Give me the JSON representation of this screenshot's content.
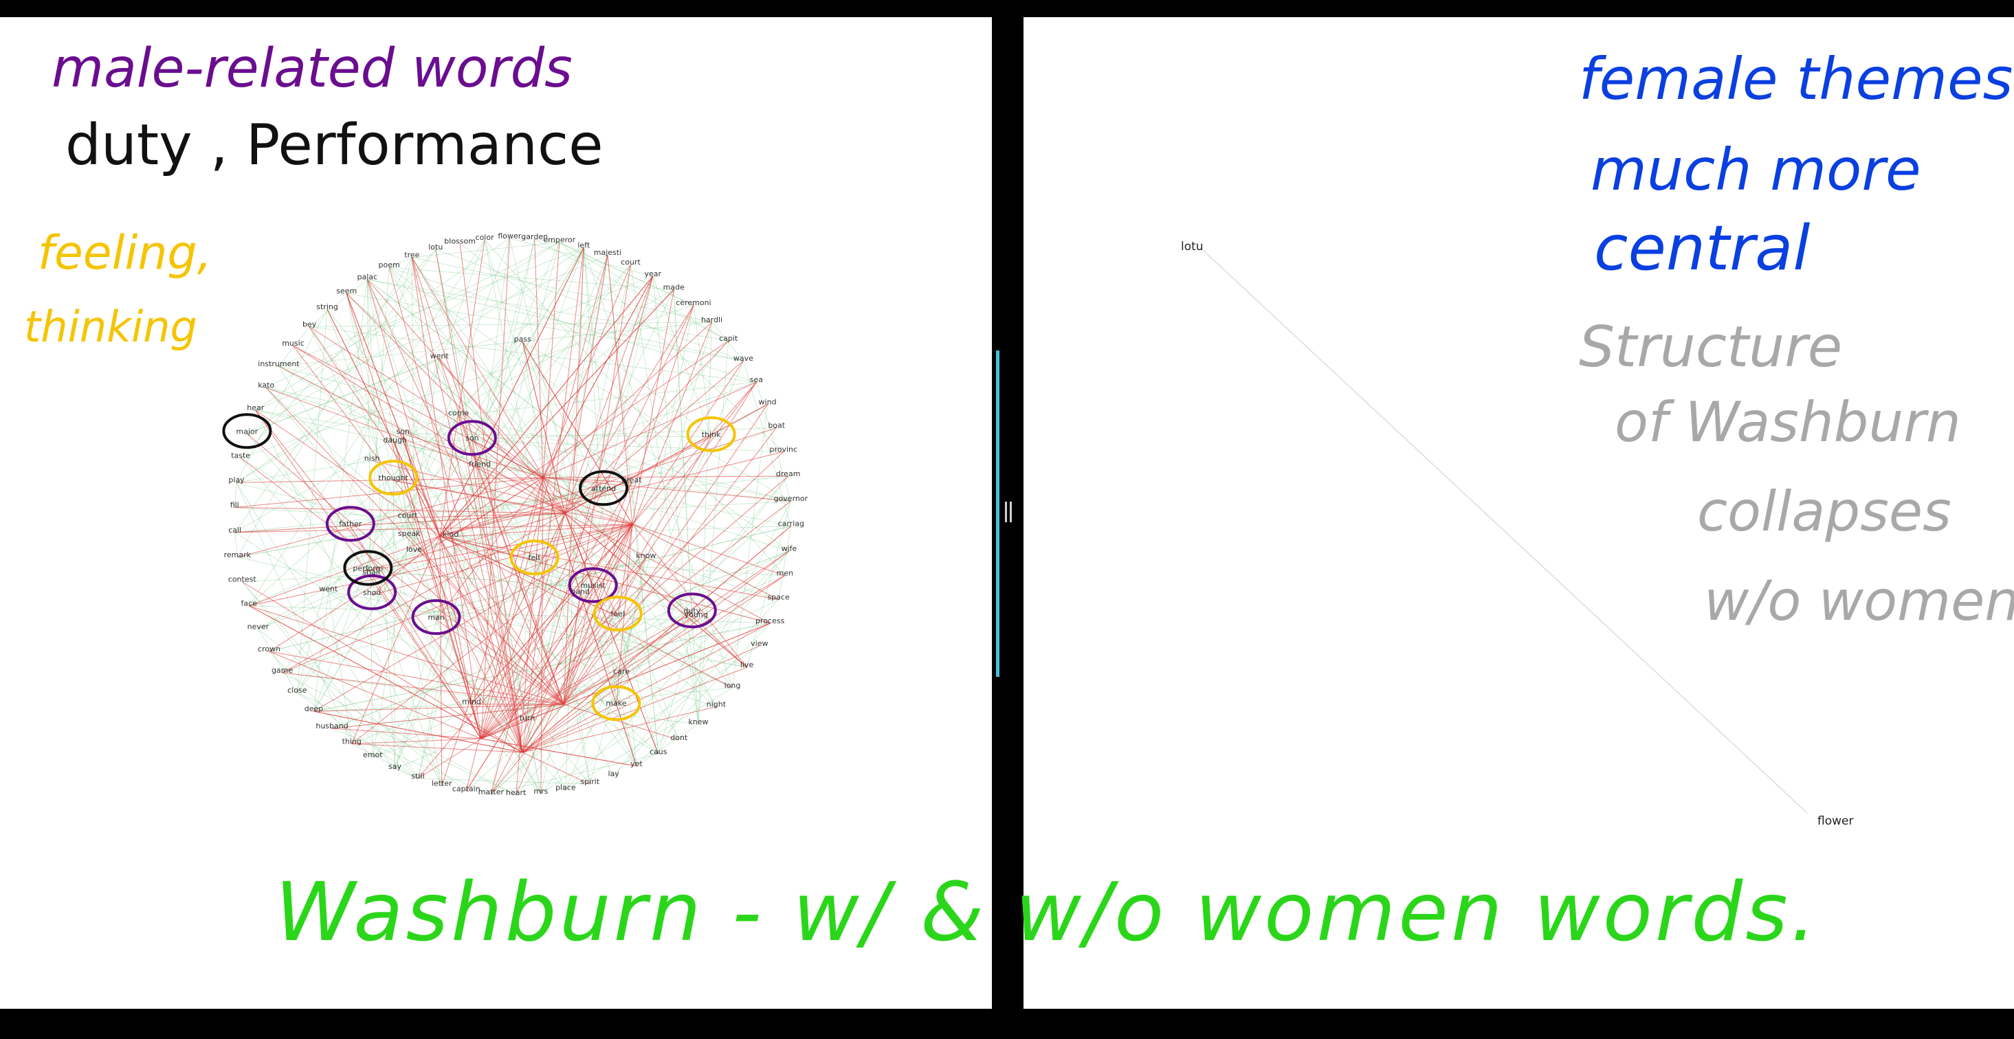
{
  "annotations": {
    "male_words": "male-related words",
    "duty": "duty , Performance",
    "feeling": "feeling,",
    "thinking": "thinking",
    "female_themes": "female themes",
    "much_more": "much more",
    "central": "central",
    "structure": "Structure",
    "of_washburn": "of Washburn",
    "collapses": "collapses",
    "without_women": "w/o women",
    "footer": "Washburn - w/ & w/o women words."
  },
  "colors": {
    "purple": "#6a0d8f",
    "black": "#111111",
    "yellow": "#f5c400",
    "blue": "#0a3fe0",
    "gray": "#a8a8a8",
    "green": "#2bd61a",
    "edge_red": "#e03a3a",
    "edge_green": "#7cc98a",
    "divider_accent": "#46c0d4"
  },
  "left_network": {
    "nodes": [
      "palac",
      "poem",
      "tree",
      "lotu",
      "blossom",
      "color",
      "flower",
      "garden",
      "emperor",
      "left",
      "majesti",
      "court",
      "year",
      "made",
      "ceremoni",
      "hardli",
      "capit",
      "wave",
      "sea",
      "wind",
      "boat",
      "provinc",
      "dream",
      "governor",
      "carriag",
      "wife",
      "men",
      "space",
      "process",
      "view",
      "live",
      "long",
      "night",
      "knew",
      "dont",
      "caus",
      "yet",
      "lay",
      "spirit",
      "place",
      "mrs",
      "heart",
      "matter",
      "captain",
      "letter",
      "still",
      "say",
      "emot",
      "thing",
      "husband",
      "deep",
      "close",
      "game",
      "crown",
      "never",
      "face",
      "contest",
      "remark",
      "call",
      "fill",
      "play",
      "taste",
      "major",
      "hear",
      "kato",
      "instrument",
      "music",
      "bey",
      "string",
      "seem",
      "father",
      "musist",
      "perform",
      "duty",
      "daugh",
      "mind",
      "friend",
      "court2",
      "son",
      "nish",
      "felt",
      "think",
      "feel",
      "attend",
      "shod",
      "come",
      "make",
      "love",
      "thought",
      "care",
      "man",
      "young",
      "turn",
      "speak",
      "son2",
      "pass",
      "hand",
      "kind",
      "know",
      "went",
      "great",
      "shall",
      "went2"
    ],
    "circled_purple": [
      "father",
      "musist",
      "duty",
      "son",
      "shod",
      "man"
    ],
    "circled_black": [
      "perform",
      "major",
      "attend"
    ],
    "circled_yellow": [
      "feel",
      "felt",
      "thought",
      "think",
      "make"
    ]
  },
  "right_network": {
    "nodes": [
      "lotu",
      "flower"
    ]
  }
}
